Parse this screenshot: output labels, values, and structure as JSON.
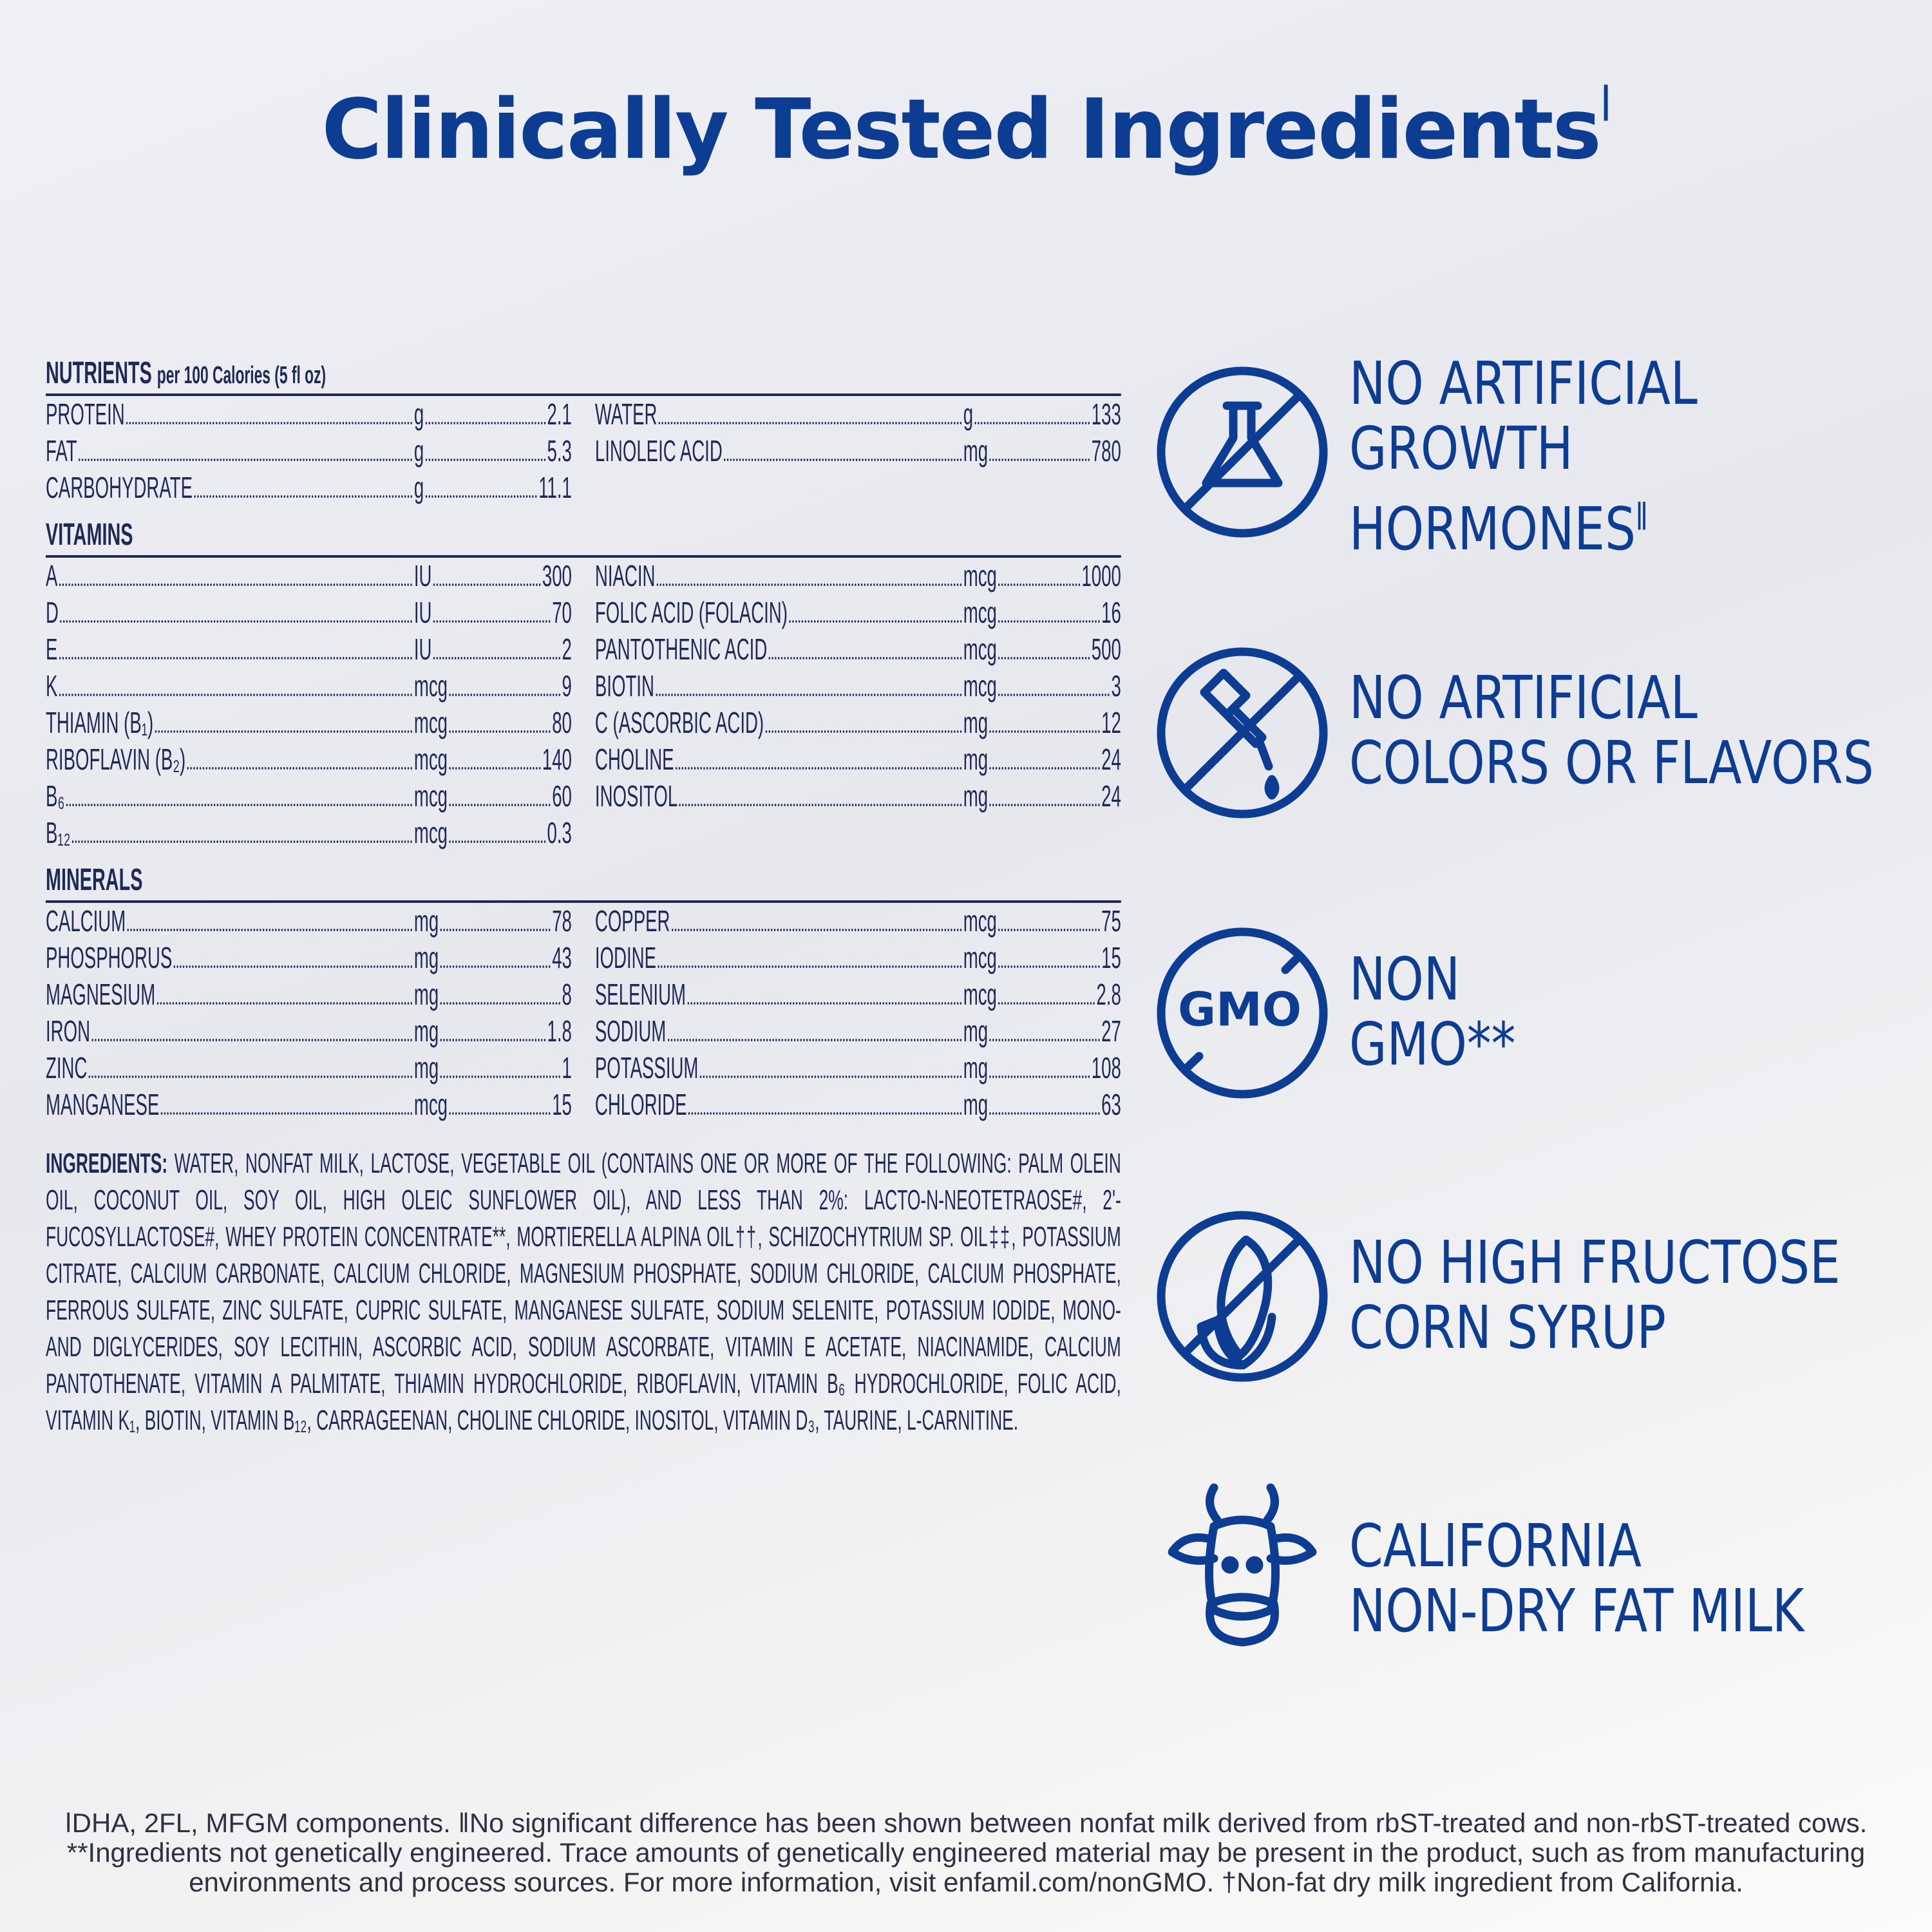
{
  "title": "Clinically Tested Ingredients",
  "title_mark": "ǀ",
  "nutrients": {
    "heading": "NUTRIENTS",
    "subheading": "per 100 Calories (5 fl oz)",
    "left": [
      [
        "PROTEIN",
        "g",
        "2.1"
      ],
      [
        "FAT",
        "g",
        "5.3"
      ],
      [
        "CARBOHYDRATE",
        "g",
        "11.1"
      ]
    ],
    "right": [
      [
        "WATER",
        "g",
        "133"
      ],
      [
        "LINOLEIC ACID",
        "mg",
        "780"
      ]
    ]
  },
  "vitamins": {
    "heading": "VITAMINS",
    "left": [
      [
        "A",
        "IU",
        "300"
      ],
      [
        "D",
        "IU",
        "70"
      ],
      [
        "E",
        "IU",
        "2"
      ],
      [
        "K",
        "mcg",
        "9"
      ],
      [
        "THIAMIN (B₁)",
        "mcg",
        "80"
      ],
      [
        "RIBOFLAVIN (B₂)",
        "mcg",
        "140"
      ],
      [
        "B₆",
        "mcg",
        "60"
      ],
      [
        "B₁₂",
        "mcg",
        "0.3"
      ]
    ],
    "right": [
      [
        "NIACIN",
        "mcg",
        "1000"
      ],
      [
        "FOLIC ACID (FOLACIN)",
        "mcg",
        "16"
      ],
      [
        "PANTOTHENIC ACID",
        "mcg",
        "500"
      ],
      [
        "BIOTIN",
        "mcg",
        "3"
      ],
      [
        "C (ASCORBIC ACID)",
        "mg",
        "12"
      ],
      [
        "CHOLINE",
        "mg",
        "24"
      ],
      [
        "INOSITOL",
        "mg",
        "24"
      ]
    ]
  },
  "minerals": {
    "heading": "MINERALS",
    "left": [
      [
        "CALCIUM",
        "mg",
        "78"
      ],
      [
        "PHOSPHORUS",
        "mg",
        "43"
      ],
      [
        "MAGNESIUM",
        "mg",
        "8"
      ],
      [
        "IRON",
        "mg",
        "1.8"
      ],
      [
        "ZINC",
        "mg",
        "1"
      ],
      [
        "MANGANESE",
        "mcg",
        "15"
      ]
    ],
    "right": [
      [
        "COPPER",
        "mcg",
        "75"
      ],
      [
        "IODINE",
        "mcg",
        "15"
      ],
      [
        "SELENIUM",
        "mcg",
        "2.8"
      ],
      [
        "SODIUM",
        "mg",
        "27"
      ],
      [
        "POTASSIUM",
        "mg",
        "108"
      ],
      [
        "CHLORIDE",
        "mg",
        "63"
      ]
    ]
  },
  "ingredients": {
    "label": "INGREDIENTS:",
    "text": "WATER, NONFAT MILK, LACTOSE, VEGETABLE OIL (CONTAINS ONE OR MORE OF THE FOLLOWING: PALM OLEIN OIL, COCONUT OIL, SOY OIL, HIGH OLEIC SUNFLOWER OIL), AND LESS THAN 2%: LACTO-N-NEOTETRAOSE#, 2'-FUCOSYLLACTOSE#, WHEY PROTEIN CONCENTRATE**, MORTIERELLA ALPINA OIL††, SCHIZOCHYTRIUM SP. OIL‡‡, POTASSIUM CITRATE, CALCIUM CARBONATE, CALCIUM CHLORIDE, MAGNESIUM PHOSPHATE, SODIUM CHLORIDE, CALCIUM PHOSPHATE, FERROUS SULFATE, ZINC SULFATE, CUPRIC SULFATE, MANGANESE SULFATE, SODIUM SELENITE, POTASSIUM IODIDE, MONO- AND DIGLYCERIDES, SOY LECITHIN, ASCORBIC ACID, SODIUM ASCORBATE, VITAMIN E ACETATE, NIACINAMIDE, CALCIUM PANTOTHENATE, VITAMIN A PALMITATE, THIAMIN HYDROCHLORIDE, RIBOFLAVIN, VITAMIN B₆ HYDROCHLORIDE, FOLIC ACID, VITAMIN K₁, BIOTIN, VITAMIN B₁₂, CARRAGEENAN, CHOLINE CHLORIDE, INOSITOL, VITAMIN D₃, TAURINE, L-CARNITINE."
  },
  "claims": [
    {
      "lines": [
        "NO ARTIFICIAL",
        "GROWTH",
        "HORMONES"
      ],
      "mark": "ǁ"
    },
    {
      "lines": [
        "NO ARTIFICIAL",
        "COLORS OR FLAVORS"
      ]
    },
    {
      "lines": [
        "NON",
        "GMO**"
      ],
      "icon_text": "GMO"
    },
    {
      "lines": [
        "NO HIGH FRUCTOSE",
        "CORN SYRUP"
      ]
    },
    {
      "lines": [
        "CALIFORNIA",
        "NON-DRY FAT MILK"
      ]
    }
  ],
  "footnotes": [
    "ǀDHA, 2FL, MFGM components. ǁNo significant difference has been shown between nonfat milk derived from rbST-treated and non-rbST-treated cows.",
    "**Ingredients not genetically engineered. Trace amounts of genetically engineered material may be present in the product, such as from manufacturing",
    "environments and process sources. For more information, visit enfamil.com/nonGMO. †Non-fat dry milk ingredient from California."
  ]
}
